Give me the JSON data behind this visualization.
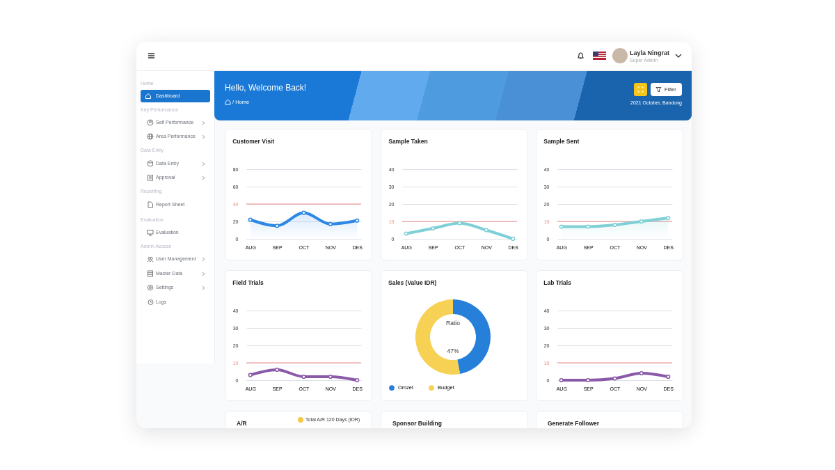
{
  "chart_data": [
    {
      "type": "other",
      "title": "Hello, Welcome Back!",
      "annotations": [
        "/ Home",
        "2021 October, Bandung",
        "Filter",
        "Layla Ningrat",
        "Super Admin",
        "Home",
        "Dashboard",
        "Key Performance",
        "Self Performance",
        "Area Performance",
        "Data Entry",
        "Data Entry",
        "Approval",
        "Reporting",
        "Report Sheet",
        "Evaluation",
        "Evaluation",
        "Admin Access",
        "User Management",
        "Master Data",
        "Settings",
        "Logs"
      ]
    },
    {
      "type": "area",
      "title": "Customer Visit",
      "categories": [
        "AUG",
        "SEP",
        "OCT",
        "NOV",
        "DES"
      ],
      "values": [
        22,
        15,
        30,
        17,
        21
      ],
      "color": "#2b88e4",
      "ylim": [
        0,
        80
      ],
      "yticks": [
        0,
        20,
        40,
        60,
        80
      ],
      "grid": "y",
      "marker": "circle",
      "ref_lines": [
        {
          "axis": "y",
          "value": 40,
          "color": "#ee8a8a"
        }
      ]
    },
    {
      "type": "line",
      "title": "Sample Taken",
      "categories": [
        "AUG",
        "SEP",
        "OCT",
        "NOV",
        "DES"
      ],
      "values": [
        3,
        6,
        9,
        5,
        0
      ],
      "color": "#7fd0d6",
      "ylim": [
        0,
        40
      ],
      "yticks": [
        0,
        10,
        20,
        30,
        40
      ],
      "grid": "y",
      "marker": "circle",
      "ref_lines": [
        {
          "axis": "y",
          "value": 10,
          "color": "#ee8a8a"
        }
      ]
    },
    {
      "type": "area",
      "title": "Sample Sent",
      "categories": [
        "AUG",
        "SEP",
        "OCT",
        "NOV",
        "DES"
      ],
      "values": [
        7,
        7,
        8,
        10,
        12
      ],
      "color": "#7fd0d6",
      "ylim": [
        0,
        40
      ],
      "yticks": [
        0,
        10,
        20,
        30,
        40
      ],
      "grid": "y",
      "marker": "circle",
      "ref_lines": [
        {
          "axis": "y",
          "value": 10,
          "color": "#ee8a8a"
        }
      ]
    },
    {
      "type": "line",
      "title": "Field Trials",
      "categories": [
        "AUG",
        "SEP",
        "OCT",
        "NOV",
        "DES"
      ],
      "values": [
        3,
        6,
        2,
        2,
        0
      ],
      "color": "#8a5aa8",
      "ylim": [
        0,
        40
      ],
      "yticks": [
        0,
        10,
        20,
        30,
        40
      ],
      "grid": "y",
      "marker": "circle",
      "ref_lines": [
        {
          "axis": "y",
          "value": 10,
          "color": "#ee8a8a"
        }
      ]
    },
    {
      "type": "donut",
      "title": "Sales (Value IDR)",
      "categories": [
        "Omzet",
        "Budget"
      ],
      "values": [
        47,
        53
      ],
      "colors": [
        "#2680d9",
        "#f7d154"
      ],
      "legend": "bottom",
      "annotations": [
        "Ratio",
        "47%"
      ]
    },
    {
      "type": "line",
      "title": "Lab Trials",
      "categories": [
        "AUG",
        "SEP",
        "OCT",
        "NOV",
        "DES"
      ],
      "values": [
        0,
        0,
        1,
        4,
        2
      ],
      "color": "#8a5aa8",
      "ylim": [
        0,
        40
      ],
      "yticks": [
        0,
        10,
        20,
        30,
        40
      ],
      "grid": "y",
      "marker": "circle",
      "ref_lines": [
        {
          "axis": "y",
          "value": 10,
          "color": "#ee8a8a"
        }
      ]
    },
    {
      "type": "other",
      "title": "A/R",
      "annotations": [
        "Total A/R 120 Days (IDR)"
      ]
    },
    {
      "type": "other",
      "title": "Sponsor Building"
    },
    {
      "type": "other",
      "title": "Generate Follower"
    }
  ]
}
